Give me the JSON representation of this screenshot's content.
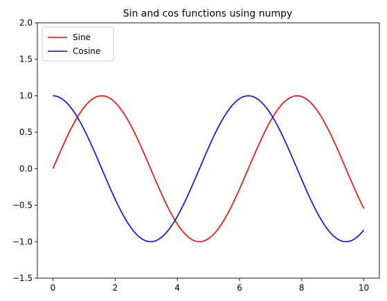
{
  "chart_data": {
    "type": "line",
    "title": "Sin and cos functions using numpy",
    "xlabel": "",
    "ylabel": "",
    "xlim": [
      -0.5,
      10.5
    ],
    "ylim": [
      -1.5,
      2.0
    ],
    "xticks": [
      0,
      2,
      4,
      6,
      8,
      10
    ],
    "xtick_labels": [
      "0",
      "2",
      "4",
      "6",
      "8",
      "10"
    ],
    "yticks": [
      -1.5,
      -1.0,
      -0.5,
      0.0,
      0.5,
      1.0,
      1.5,
      2.0
    ],
    "ytick_labels": [
      "−1.5",
      "−1.0",
      "−0.5",
      "0.0",
      "0.5",
      "1.0",
      "1.5",
      "2.0"
    ],
    "grid": false,
    "legend": "top-left",
    "x": [
      0,
      0.5,
      1,
      1.5,
      2,
      2.5,
      3,
      3.5,
      4,
      4.5,
      5,
      5.5,
      6,
      6.5,
      7,
      7.5,
      8,
      8.5,
      9,
      9.5,
      10
    ],
    "series": [
      {
        "name": "Sine",
        "color": "#ff0000",
        "function": "sin",
        "values": [
          0.0,
          0.479,
          0.841,
          0.997,
          0.909,
          0.598,
          0.141,
          -0.351,
          -0.757,
          -0.978,
          -0.959,
          -0.706,
          -0.279,
          0.215,
          0.657,
          0.938,
          0.989,
          0.798,
          0.412,
          -0.075,
          -0.544
        ]
      },
      {
        "name": "Cosine",
        "color": "#0000ff",
        "function": "cos",
        "values": [
          1.0,
          0.878,
          0.54,
          0.071,
          -0.416,
          -0.801,
          -0.99,
          -0.936,
          -0.654,
          -0.211,
          0.284,
          0.709,
          0.96,
          0.977,
          0.754,
          0.347,
          -0.146,
          -0.602,
          -0.911,
          -0.997,
          -0.839
        ]
      }
    ]
  }
}
